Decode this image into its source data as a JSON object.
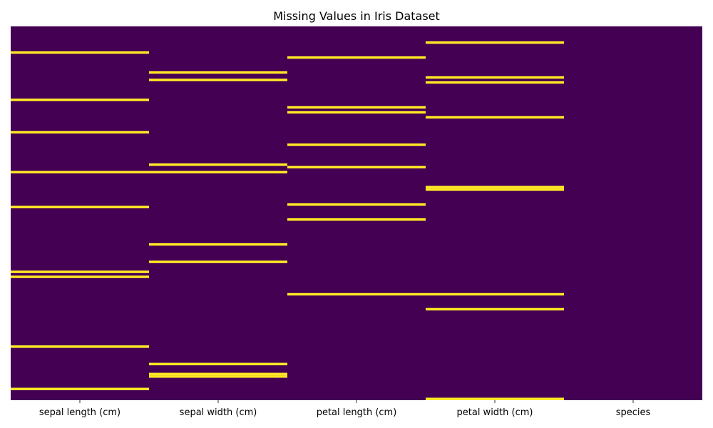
{
  "chart_data": {
    "type": "heatmap",
    "title": "Missing Values in Iris Dataset",
    "xlabel": "",
    "ylabel": "",
    "n_rows": 150,
    "columns": [
      "sepal length (cm)",
      "sepal width (cm)",
      "petal length (cm)",
      "petal width (cm)",
      "species"
    ],
    "missing_rows": [
      [
        10,
        29,
        42,
        58,
        72,
        98,
        100,
        128,
        145
      ],
      [
        18,
        21,
        55,
        58,
        87,
        94,
        135,
        139,
        140
      ],
      [
        12,
        32,
        34,
        47,
        56,
        71,
        77,
        107
      ],
      [
        6,
        20,
        22,
        36,
        64,
        65,
        107,
        113,
        149
      ],
      []
    ],
    "colors": {
      "present": "#440154",
      "missing": "#fde725"
    },
    "colorbar": false,
    "grid": false
  }
}
